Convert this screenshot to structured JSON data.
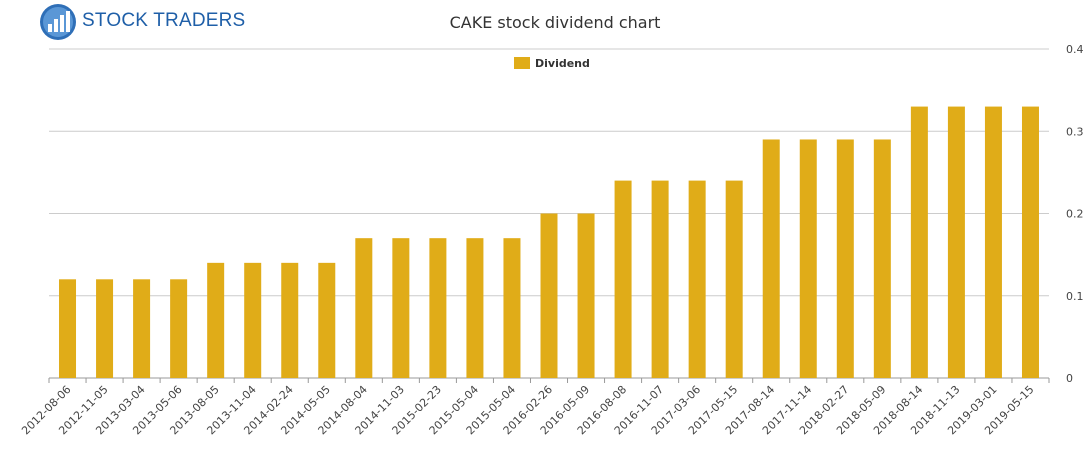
{
  "logo": {
    "text": "STOCK TRADERS"
  },
  "chart_data": {
    "type": "bar",
    "title": "CAKE stock dividend chart",
    "legend": {
      "entries": [
        "Dividend"
      ],
      "placement": "top-center"
    },
    "color": "#e0ac18",
    "ylim": [
      0,
      0.4
    ],
    "yticks": [
      "0",
      "0.1",
      "0.2",
      "0.3",
      "0.4"
    ],
    "grid": true,
    "categories": [
      "2012-08-06",
      "2012-11-05",
      "2013-03-04",
      "2013-05-06",
      "2013-08-05",
      "2013-11-04",
      "2014-02-24",
      "2014-05-05",
      "2014-08-04",
      "2014-11-03",
      "2015-02-23",
      "2015-05-04",
      "2015-05-04",
      "2016-02-26",
      "2016-05-09",
      "2016-08-08",
      "2016-11-07",
      "2017-03-06",
      "2017-05-15",
      "2017-08-14",
      "2017-11-14",
      "2018-02-27",
      "2018-05-09",
      "2018-08-14",
      "2018-11-13",
      "2019-03-01",
      "2019-05-15"
    ],
    "series": [
      {
        "name": "Dividend",
        "values": [
          0.12,
          0.12,
          0.12,
          0.12,
          0.14,
          0.14,
          0.14,
          0.14,
          0.17,
          0.17,
          0.17,
          0.17,
          0.17,
          0.2,
          0.2,
          0.24,
          0.24,
          0.24,
          0.24,
          0.29,
          0.29,
          0.29,
          0.29,
          0.33,
          0.33,
          0.33,
          0.33
        ]
      }
    ]
  }
}
